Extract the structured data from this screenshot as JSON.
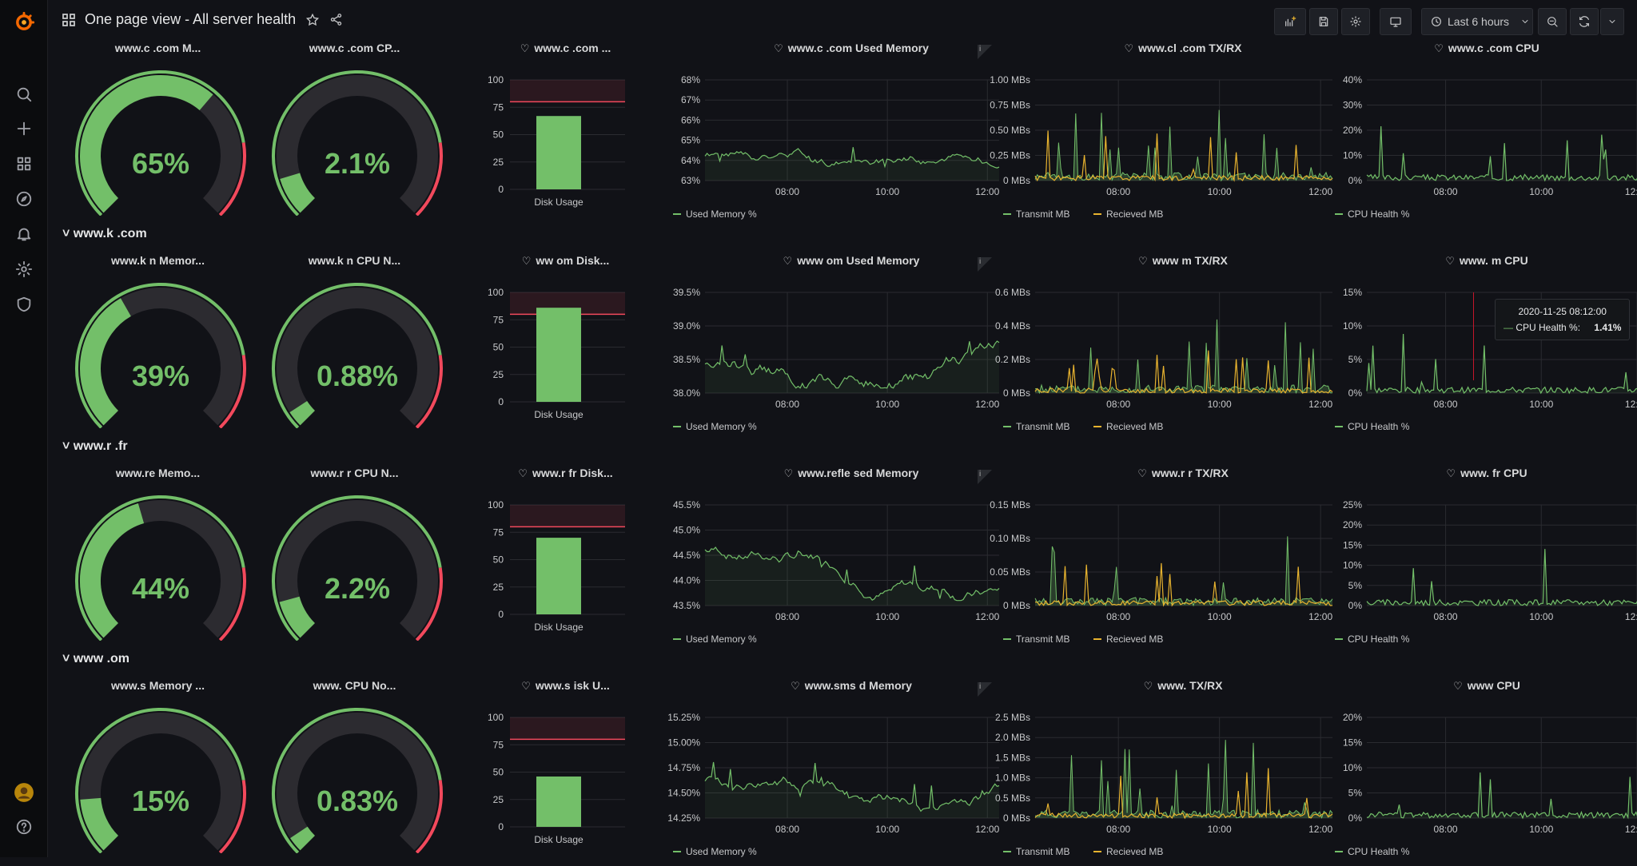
{
  "app": {
    "title": "One page view - All server health",
    "time_range": "Last 6 hours"
  },
  "colors": {
    "green": "#73bf69",
    "yellow": "#e8b32f",
    "red": "#f2495c",
    "gauge_bg": "#2c2b30"
  },
  "rows": [
    {
      "header": "",
      "name": "www.c…m",
      "mem_title": "www.c .com M...",
      "cpu_title": "www.c .com CP...",
      "disk_title": "www.c .com ...",
      "used_mem_title": "www.c .com Used Memory",
      "txrx_title": "www.cl .com TX/RX",
      "cpu_chart_title": "www.c .com CPU",
      "mem_pct": 65,
      "mem_label": "65%",
      "cpu_pct": 2.1,
      "cpu_label": "2.1%",
      "disk_pct": 67,
      "mem_chart": {
        "yticks": [
          "68%",
          "67%",
          "66%",
          "65%",
          "64%",
          "63%"
        ],
        "ymin": 63,
        "ymax": 68,
        "base": 64.2,
        "amp": 0.6,
        "seed": 1
      },
      "txrx_chart": {
        "yticks": [
          "1.00 MBs",
          "0.75 MBs",
          "0.50 MBs",
          "0.25 MBs",
          "0 MBs"
        ],
        "ymax": 1.0,
        "seed": 2
      },
      "cpu_chart": {
        "yticks": [
          "40%",
          "30%",
          "20%",
          "10%",
          "0%"
        ],
        "ymax": 40,
        "seed": 3
      }
    },
    {
      "header": "www.k .com",
      "name": "www.k…",
      "mem_title": "www.k n Memor...",
      "cpu_title": "www.k n CPU N...",
      "disk_title": "ww om Disk...",
      "used_mem_title": "www om Used Memory",
      "txrx_title": "www m TX/RX",
      "cpu_chart_title": "www. m CPU",
      "mem_pct": 39,
      "mem_label": "39%",
      "cpu_pct": 0.88,
      "cpu_label": "0.88%",
      "disk_pct": 86,
      "mem_chart": {
        "yticks": [
          "39.5%",
          "39.0%",
          "38.5%",
          "38.0%"
        ],
        "ymin": 38,
        "ymax": 39.5,
        "base": 38.5,
        "amp": 0.3,
        "seed": 4
      },
      "txrx_chart": {
        "yticks": [
          "0.6 MBs",
          "0.4 MBs",
          "0.2 MBs",
          "0 MBs"
        ],
        "ymax": 0.6,
        "seed": 5
      },
      "cpu_chart": {
        "yticks": [
          "15%",
          "10%",
          "5%",
          "0%"
        ],
        "ymax": 15,
        "seed": 6
      },
      "tooltip": {
        "time": "2020-11-25 08:12:00",
        "label": "CPU Health %:",
        "value": "1.41%"
      }
    },
    {
      "header": "www.r .fr",
      "name": "www.r…",
      "mem_title": "www.re Memo...",
      "cpu_title": "www.r r CPU N...",
      "disk_title": "www.r fr Disk...",
      "used_mem_title": "www.refle sed Memory",
      "txrx_title": "www.r r TX/RX",
      "cpu_chart_title": "www. fr CPU",
      "mem_pct": 44,
      "mem_label": "44%",
      "cpu_pct": 2.2,
      "cpu_label": "2.2%",
      "disk_pct": 70,
      "mem_chart": {
        "yticks": [
          "45.5%",
          "45.0%",
          "44.5%",
          "44.0%",
          "43.5%"
        ],
        "ymin": 43.5,
        "ymax": 45.5,
        "base": 44.6,
        "amp": 0.3,
        "seed": 7
      },
      "txrx_chart": {
        "yticks": [
          "0.15 MBs",
          "0.10 MBs",
          "0.05 MBs",
          "0 MBs"
        ],
        "ymax": 0.15,
        "seed": 8
      },
      "cpu_chart": {
        "yticks": [
          "25%",
          "20%",
          "15%",
          "10%",
          "5%",
          "0%"
        ],
        "ymax": 25,
        "seed": 9
      }
    },
    {
      "header": "www .om",
      "name": "www.s…",
      "mem_title": "www.s Memory ...",
      "cpu_title": "www. CPU No...",
      "disk_title": "www.s isk U...",
      "used_mem_title": "www.sms d Memory",
      "txrx_title": "www. TX/RX",
      "cpu_chart_title": "www CPU",
      "mem_pct": 15,
      "mem_label": "15%",
      "cpu_pct": 0.83,
      "cpu_label": "0.83%",
      "disk_pct": 46,
      "mem_chart": {
        "yticks": [
          "15.25%",
          "15.00%",
          "14.75%",
          "14.50%",
          "14.25%"
        ],
        "ymin": 14.25,
        "ymax": 15.25,
        "base": 14.65,
        "amp": 0.15,
        "seed": 10
      },
      "txrx_chart": {
        "yticks": [
          "2.5 MBs",
          "2.0 MBs",
          "1.5 MBs",
          "1.0 MBs",
          "0.5 MBs",
          "0 MBs"
        ],
        "ymax": 2.5,
        "seed": 11
      },
      "cpu_chart": {
        "yticks": [
          "20%",
          "15%",
          "10%",
          "5%",
          "0%"
        ],
        "ymax": 20,
        "seed": 12
      }
    }
  ],
  "disk": {
    "yticks": [
      "100",
      "75",
      "50",
      "25",
      "0"
    ],
    "threshold": 80,
    "label": "Disk Usage"
  },
  "xticks": [
    "08:00",
    "10:00",
    "12:00"
  ],
  "legends": {
    "used_mem": "Used Memory %",
    "transmit": "Transmit MB",
    "received": "Recieved MB",
    "cpu": "CPU Health %"
  }
}
